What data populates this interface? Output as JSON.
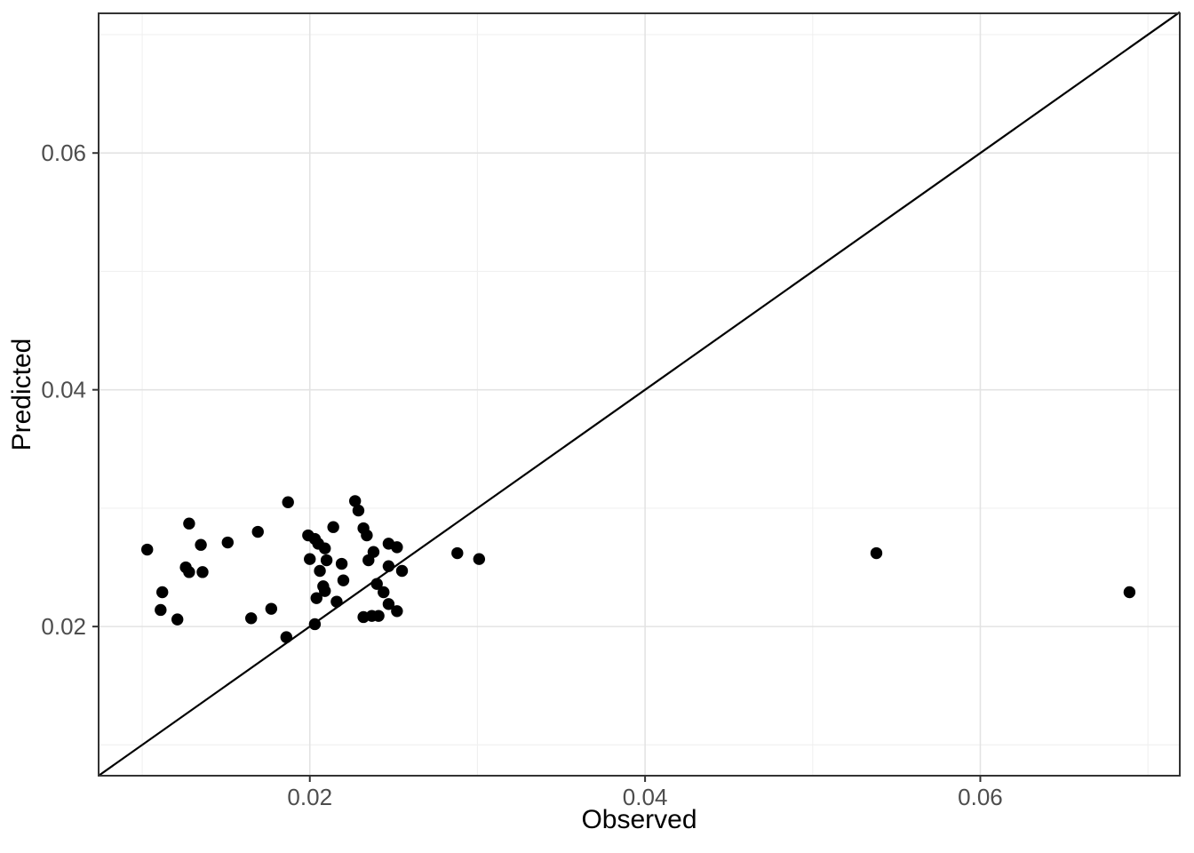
{
  "style": {
    "background": "#ffffff",
    "panel_background": "#ffffff",
    "panel_border_color": "#333333",
    "grid_major_color": "#e3e3e3",
    "grid_minor_color": "#f0f0f0",
    "tick_mark_color": "#333333",
    "tick_label_color": "#4d4d4d",
    "axis_title_color": "#000000",
    "point_color": "#000000",
    "line_color": "#000000"
  },
  "chart_data": {
    "type": "scatter",
    "title": "",
    "xlabel": "Observed",
    "ylabel": "Predicted",
    "xlim": [
      0.0074,
      0.0719
    ],
    "ylim": [
      0.0074,
      0.0718
    ],
    "x_major_ticks": [
      0.02,
      0.04,
      0.06
    ],
    "y_major_ticks": [
      0.02,
      0.04,
      0.06
    ],
    "x_minor_ticks": [
      0.01,
      0.03,
      0.05,
      0.07
    ],
    "y_minor_ticks": [
      0.01,
      0.03,
      0.05,
      0.07
    ],
    "x_tick_labels": [
      "0.02",
      "0.04",
      "0.06"
    ],
    "y_tick_labels": [
      "0.02",
      "0.04",
      "0.06"
    ],
    "grid": "major+minor",
    "legend": "none",
    "reference_line": {
      "kind": "identity",
      "x1": 0.0074,
      "y1": 0.0074,
      "x2": 0.0719,
      "y2": 0.0719
    },
    "points": [
      [
        0.0187,
        0.0305
      ],
      [
        0.0227,
        0.0306
      ],
      [
        0.0229,
        0.0298
      ],
      [
        0.0128,
        0.0287
      ],
      [
        0.0214,
        0.0284
      ],
      [
        0.0232,
        0.0283
      ],
      [
        0.0234,
        0.0277
      ],
      [
        0.0199,
        0.0277
      ],
      [
        0.0203,
        0.0274
      ],
      [
        0.0205,
        0.027
      ],
      [
        0.0209,
        0.0266
      ],
      [
        0.0169,
        0.028
      ],
      [
        0.0151,
        0.0271
      ],
      [
        0.0135,
        0.0269
      ],
      [
        0.0103,
        0.0265
      ],
      [
        0.0247,
        0.027
      ],
      [
        0.0252,
        0.0267
      ],
      [
        0.0238,
        0.0263
      ],
      [
        0.0235,
        0.0256
      ],
      [
        0.021,
        0.0256
      ],
      [
        0.02,
        0.0257
      ],
      [
        0.0206,
        0.0247
      ],
      [
        0.0219,
        0.0253
      ],
      [
        0.0126,
        0.025
      ],
      [
        0.0128,
        0.0246
      ],
      [
        0.0136,
        0.0246
      ],
      [
        0.022,
        0.0239
      ],
      [
        0.0247,
        0.0251
      ],
      [
        0.0255,
        0.0247
      ],
      [
        0.024,
        0.0236
      ],
      [
        0.0208,
        0.0234
      ],
      [
        0.0209,
        0.023
      ],
      [
        0.0112,
        0.0229
      ],
      [
        0.0244,
        0.0229
      ],
      [
        0.0216,
        0.0221
      ],
      [
        0.0204,
        0.0224
      ],
      [
        0.0247,
        0.0219
      ],
      [
        0.0252,
        0.0213
      ],
      [
        0.0111,
        0.0214
      ],
      [
        0.0177,
        0.0215
      ],
      [
        0.0121,
        0.0206
      ],
      [
        0.0165,
        0.0207
      ],
      [
        0.0232,
        0.0208
      ],
      [
        0.0237,
        0.0209
      ],
      [
        0.0241,
        0.0209
      ],
      [
        0.0203,
        0.0202
      ],
      [
        0.0186,
        0.0191
      ],
      [
        0.0288,
        0.0262
      ],
      [
        0.0301,
        0.0257
      ],
      [
        0.0538,
        0.0262
      ],
      [
        0.0689,
        0.0229
      ]
    ]
  }
}
